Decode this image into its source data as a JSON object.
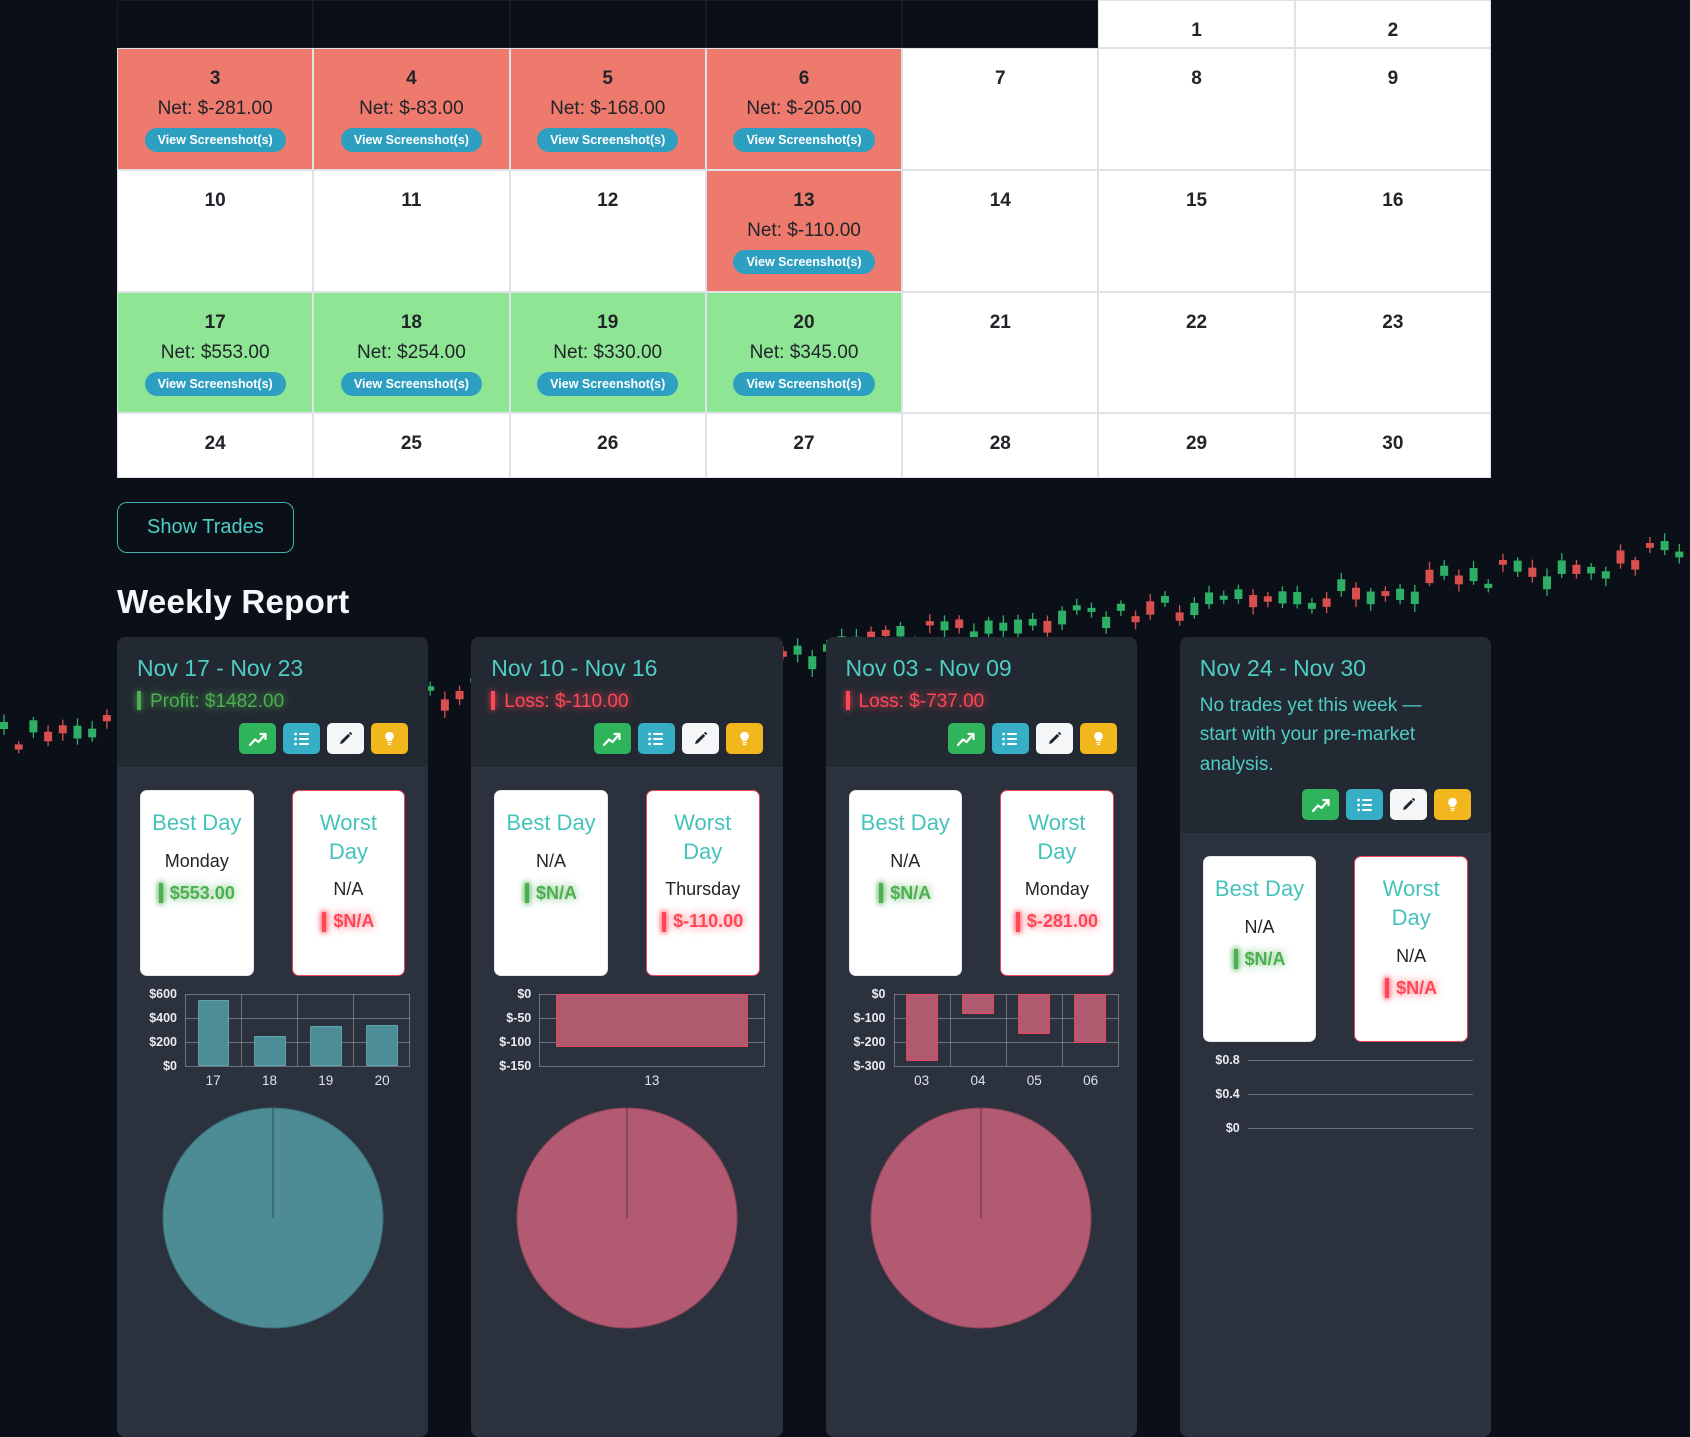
{
  "calendar": {
    "cells": [
      {
        "day": "",
        "type": "empty"
      },
      {
        "day": "",
        "type": "empty"
      },
      {
        "day": "",
        "type": "empty"
      },
      {
        "day": "",
        "type": "empty"
      },
      {
        "day": "",
        "type": "empty"
      },
      {
        "day": "1",
        "type": "plain"
      },
      {
        "day": "2",
        "type": "plain"
      },
      {
        "day": "3",
        "type": "loss",
        "net": "Net: $-281.00",
        "btn": "View Screenshot(s)"
      },
      {
        "day": "4",
        "type": "loss",
        "net": "Net: $-83.00",
        "btn": "View Screenshot(s)"
      },
      {
        "day": "5",
        "type": "loss",
        "net": "Net: $-168.00",
        "btn": "View Screenshot(s)"
      },
      {
        "day": "6",
        "type": "loss",
        "net": "Net: $-205.00",
        "btn": "View Screenshot(s)"
      },
      {
        "day": "7",
        "type": "plain"
      },
      {
        "day": "8",
        "type": "plain"
      },
      {
        "day": "9",
        "type": "plain"
      },
      {
        "day": "10",
        "type": "plain"
      },
      {
        "day": "11",
        "type": "plain"
      },
      {
        "day": "12",
        "type": "plain"
      },
      {
        "day": "13",
        "type": "loss",
        "net": "Net: $-110.00",
        "btn": "View Screenshot(s)"
      },
      {
        "day": "14",
        "type": "plain"
      },
      {
        "day": "15",
        "type": "plain"
      },
      {
        "day": "16",
        "type": "plain"
      },
      {
        "day": "17",
        "type": "gain",
        "net": "Net: $553.00",
        "btn": "View Screenshot(s)"
      },
      {
        "day": "18",
        "type": "gain",
        "net": "Net: $254.00",
        "btn": "View Screenshot(s)"
      },
      {
        "day": "19",
        "type": "gain",
        "net": "Net: $330.00",
        "btn": "View Screenshot(s)"
      },
      {
        "day": "20",
        "type": "gain",
        "net": "Net: $345.00",
        "btn": "View Screenshot(s)"
      },
      {
        "day": "21",
        "type": "plain"
      },
      {
        "day": "22",
        "type": "plain"
      },
      {
        "day": "23",
        "type": "plain"
      },
      {
        "day": "24",
        "type": "plain"
      },
      {
        "day": "25",
        "type": "plain"
      },
      {
        "day": "26",
        "type": "plain"
      },
      {
        "day": "27",
        "type": "plain"
      },
      {
        "day": "28",
        "type": "plain"
      },
      {
        "day": "29",
        "type": "plain"
      },
      {
        "day": "30",
        "type": "plain"
      }
    ]
  },
  "show_trades": {
    "label": "Show Trades"
  },
  "weekly_report": {
    "title": "Weekly Report"
  },
  "toolbar_icons": [
    "chart-line-icon",
    "list-icon",
    "pencil-icon",
    "lightbulb-icon"
  ],
  "colors": {
    "loss_cell": "#ee7a6d",
    "gain_cell": "#8ee695",
    "screenshot_button": "#2d9fc0",
    "accent_teal": "#4ecdc4",
    "profit_green": "#4caf50",
    "loss_red": "#ff4757"
  },
  "weeks": [
    {
      "title": "Nov 17 - Nov 23",
      "result": "Profit: $1482.00",
      "result_type": "profit",
      "best": {
        "heading": "Best Day",
        "day": "Monday",
        "value": "$553.00"
      },
      "worst": {
        "heading": "Worst Day",
        "day": "N/A",
        "value": "$N/A"
      },
      "chart": {
        "type": "bar",
        "categories": [
          "17",
          "18",
          "19",
          "20"
        ],
        "values": [
          553,
          254,
          330,
          345
        ],
        "yticks": [
          "$600",
          "$400",
          "$200",
          "$0"
        ],
        "ymin": 0,
        "ymax": 600,
        "bar_color": "#4d8d98",
        "bar_border": "#5fa3ad"
      },
      "pie": {
        "type": "pie",
        "values": [
          100
        ],
        "color": "#4d8b95",
        "border": "#3a6f78"
      }
    },
    {
      "title": "Nov 10 - Nov 16",
      "result": "Loss: $-110.00",
      "result_type": "loss",
      "best": {
        "heading": "Best Day",
        "day": "N/A",
        "value": "$N/A"
      },
      "worst": {
        "heading": "Worst Day",
        "day": "Thursday",
        "value": "$-110.00"
      },
      "chart": {
        "type": "bar",
        "categories": [
          "13"
        ],
        "values": [
          -110
        ],
        "yticks": [
          "$0",
          "$-50",
          "$-100",
          "$-150"
        ],
        "ymin": -150,
        "ymax": 0,
        "bar_color": "#b05a70",
        "bar_border": "#e94560"
      },
      "pie": {
        "type": "pie",
        "values": [
          100
        ],
        "color": "#b25a71",
        "border": "#8f4459"
      }
    },
    {
      "title": "Nov 03 - Nov 09",
      "result": "Loss: $-737.00",
      "result_type": "loss",
      "best": {
        "heading": "Best Day",
        "day": "N/A",
        "value": "$N/A"
      },
      "worst": {
        "heading": "Worst Day",
        "day": "Monday",
        "value": "$-281.00"
      },
      "chart": {
        "type": "bar",
        "categories": [
          "03",
          "04",
          "05",
          "06"
        ],
        "values": [
          -281,
          -83,
          -168,
          -205
        ],
        "yticks": [
          "$0",
          "$-100",
          "$-200",
          "$-300"
        ],
        "ymin": -300,
        "ymax": 0,
        "bar_color": "#b05a70",
        "bar_border": "#e94560"
      },
      "pie": {
        "type": "pie",
        "values": [
          100
        ],
        "color": "#b25a71",
        "border": "#8f4459"
      }
    },
    {
      "title": "Nov 24 - Nov 30",
      "message": "No trades yet this week — start with your pre-market analysis.",
      "best": {
        "heading": "Best Day",
        "day": "N/A",
        "value": "$N/A"
      },
      "worst": {
        "heading": "Worst Day",
        "day": "N/A",
        "value": "$N/A"
      },
      "chart": {
        "type": "bar",
        "categories": [],
        "values": [],
        "yticks": [
          "$0.8",
          "$0.4",
          "$0"
        ],
        "ymin": 0,
        "ymax": 0.8
      }
    }
  ]
}
